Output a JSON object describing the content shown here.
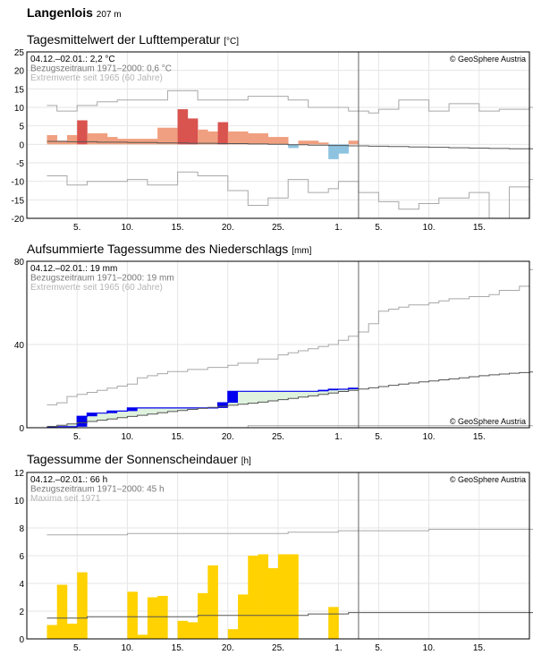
{
  "station": {
    "name": "Langenlois",
    "elevation": "207 m"
  },
  "copyright": "© GeoSphere Austria",
  "x_ticks": [
    "5.",
    "10.",
    "15.",
    "20.",
    "25.",
    "1.",
    "5.",
    "10.",
    "15."
  ],
  "colors": {
    "warm": "#f0a080",
    "warm_extreme": "#d9534f",
    "cold": "#8ec3e0",
    "precip": "#0000ee",
    "precip_fill": "#dff2dd",
    "sun": "#ffd200",
    "climate": "#555555",
    "extreme": "#a8a8a8",
    "grid": "#e6e6e6"
  },
  "chart_data": [
    {
      "type": "bar",
      "title": "Tagesmittelwert der Lufttemperatur",
      "unit": "[°C]",
      "info": [
        "04.12.–02.01.: 2,2 °C",
        "Bezugszeitraum 1971–2000: 0,6 °C",
        "Extremwerte seit 1965 (60 Jahre)"
      ],
      "ylim": [
        -20,
        25
      ],
      "y_ticks": [
        25,
        20,
        15,
        10,
        5,
        0,
        -5,
        -10,
        -15,
        -20
      ],
      "days": 50,
      "values": [
        2.5,
        1.0,
        2.5,
        6.5,
        3.0,
        3.0,
        2.0,
        1.5,
        1.5,
        1.5,
        1.5,
        4.5,
        4.5,
        9.5,
        7.0,
        4.0,
        3.5,
        6.0,
        3.5,
        3.5,
        3.0,
        3.0,
        2.0,
        2.0,
        -1.0,
        1.0,
        1.0,
        0.5,
        -4.0,
        -2.5,
        1.0
      ],
      "extreme_flags": [
        false,
        false,
        false,
        true,
        false,
        false,
        false,
        false,
        false,
        false,
        false,
        false,
        false,
        true,
        true,
        false,
        false,
        true,
        false,
        false,
        false,
        false,
        false,
        false,
        false,
        false,
        false,
        false,
        false,
        false,
        false
      ],
      "climate_mean": [
        0.8,
        0.8,
        0.7,
        0.7,
        0.7,
        0.6,
        0.6,
        0.6,
        0.5,
        0.5,
        0.5,
        0.4,
        0.4,
        0.4,
        0.3,
        0.3,
        0.3,
        0.2,
        0.2,
        0.2,
        0.1,
        0.1,
        0.0,
        0.0,
        -0.1,
        -0.1,
        -0.2,
        -0.2,
        -0.3,
        -0.3,
        -0.4,
        -0.4,
        -0.5,
        -0.5,
        -0.6,
        -0.6,
        -0.7,
        -0.7,
        -0.8,
        -0.8,
        -0.9,
        -0.9,
        -1.0,
        -1.0,
        -1.1,
        -1.1,
        -1.2,
        -1.2,
        -1.2,
        -1.3
      ],
      "max_extreme": [
        10.5,
        9.0,
        9.0,
        10.5,
        10.5,
        11.5,
        11.5,
        12.0,
        12.0,
        12.0,
        12.0,
        12.0,
        14.5,
        14.5,
        14.5,
        12.0,
        12.0,
        12.0,
        12.0,
        12.0,
        13.0,
        13.0,
        13.0,
        13.0,
        12.0,
        12.0,
        10.0,
        10.0,
        10.0,
        10.0,
        9.0,
        9.0,
        8.5,
        9.5,
        9.5,
        12.0,
        12.0,
        12.0,
        9.0,
        9.0,
        11.0,
        11.0,
        11.0,
        9.0,
        9.0,
        9.5,
        9.5,
        9.5,
        10.0,
        10.0
      ],
      "min_extreme": [
        -8.5,
        -8.5,
        -11.0,
        -11.0,
        -10.0,
        -10.0,
        -10.0,
        -10.0,
        -9.5,
        -9.5,
        -11.0,
        -11.0,
        -11.0,
        -7.5,
        -7.5,
        -8.5,
        -8.5,
        -8.5,
        -12.5,
        -12.5,
        -16.5,
        -16.5,
        -14.5,
        -14.5,
        -9.5,
        -9.5,
        -13.0,
        -13.0,
        -12.0,
        -10.0,
        -10.0,
        -13.0,
        -13.0,
        -15.5,
        -15.5,
        -17.5,
        -17.5,
        -16.0,
        -16.0,
        -14.5,
        -14.5,
        -14.5,
        -13.0,
        -13.0,
        -20.0,
        -20.0,
        -11.5,
        -11.5,
        -9.5,
        -9.5
      ]
    },
    {
      "type": "area",
      "title": "Aufsummierte Tagessumme des Niederschlags",
      "unit": "[mm]",
      "info": [
        "04.12.–02.01.: 19 mm",
        "Bezugszeitraum 1971–2000: 19 mm",
        "Extremwerte seit 1965 (60 Jahre)"
      ],
      "ylim": [
        0,
        80
      ],
      "y_ticks": [
        80,
        40,
        0
      ],
      "days": 50,
      "values": [
        0.5,
        0.5,
        0.5,
        5.5,
        7.0,
        7.0,
        8.0,
        8.0,
        9.5,
        9.5,
        9.5,
        9.5,
        9.5,
        9.5,
        9.5,
        9.5,
        9.5,
        12.0,
        17.5,
        17.5,
        17.5,
        17.5,
        17.5,
        17.5,
        17.5,
        17.5,
        17.5,
        18.0,
        18.5,
        18.5,
        19.0
      ],
      "climate_mean": [
        0.6,
        1.2,
        1.8,
        2.4,
        3.0,
        3.6,
        4.2,
        4.8,
        5.4,
        6.0,
        6.6,
        7.2,
        7.8,
        8.3,
        8.8,
        9.3,
        9.8,
        10.3,
        10.8,
        11.3,
        11.8,
        12.3,
        12.9,
        13.5,
        14.1,
        14.7,
        15.3,
        16.0,
        16.7,
        17.4,
        18.0,
        18.6,
        19.2,
        19.8,
        20.4,
        21.0,
        21.5,
        22.0,
        22.5,
        23.0,
        23.5,
        24.0,
        24.5,
        25.0,
        25.4,
        25.8,
        26.2,
        26.5,
        26.8,
        27.0
      ],
      "max_extreme": [
        11.0,
        12.0,
        15.0,
        16.0,
        17.0,
        18.0,
        19.0,
        20.0,
        21.0,
        24.0,
        25.0,
        26.0,
        27.0,
        27.0,
        28.0,
        28.0,
        29.0,
        29.0,
        30.0,
        31.0,
        31.0,
        33.0,
        33.0,
        35.0,
        36.0,
        37.0,
        38.0,
        39.0,
        40.0,
        42.0,
        44.0,
        46.0,
        50.0,
        56.0,
        57.0,
        58.0,
        59.0,
        59.0,
        60.0,
        61.0,
        62.0,
        62.0,
        63.0,
        63.0,
        64.0,
        66.0,
        66.0,
        68.0,
        76.0,
        78.0
      ],
      "min_extreme": [
        0,
        0,
        0,
        0,
        0,
        0,
        0,
        0,
        0,
        0,
        0,
        0,
        0,
        0,
        0,
        0,
        0,
        0,
        0,
        0,
        1,
        1,
        1,
        1,
        1,
        1,
        1,
        1,
        1,
        1,
        1,
        1,
        1,
        1,
        1,
        1,
        1,
        1,
        1,
        1,
        1,
        1,
        1,
        1,
        1,
        1,
        1,
        1,
        1,
        1
      ]
    },
    {
      "type": "bar",
      "title": "Tagessumme der Sonnenscheindauer",
      "unit": "[h]",
      "info": [
        "04.12.–02.01.: 66 h",
        "Bezugszeitraum 1971–2000: 45 h",
        "Maxima seit 1971"
      ],
      "ylim": [
        0,
        12
      ],
      "y_ticks": [
        12,
        10,
        8,
        6,
        4,
        2,
        0
      ],
      "days": 50,
      "values": [
        1.0,
        3.9,
        1.1,
        4.8,
        0.0,
        0.0,
        0.0,
        0.0,
        3.4,
        0.3,
        3.0,
        3.1,
        0.0,
        1.3,
        1.2,
        3.3,
        5.3,
        0.0,
        0.7,
        3.2,
        6.0,
        6.1,
        5.1,
        6.1,
        6.1,
        0.0,
        0.0,
        0.0,
        2.3,
        0.0,
        0.0
      ],
      "climate_mean": [
        1.5,
        1.5,
        1.5,
        1.5,
        1.6,
        1.6,
        1.6,
        1.6,
        1.6,
        1.6,
        1.6,
        1.6,
        1.6,
        1.6,
        1.6,
        1.7,
        1.7,
        1.7,
        1.7,
        1.7,
        1.7,
        1.7,
        1.7,
        1.7,
        1.7,
        1.7,
        1.8,
        1.8,
        1.8,
        1.8,
        1.9,
        1.9,
        1.9,
        1.9,
        1.9,
        1.9,
        1.9,
        1.9,
        1.9,
        1.9,
        1.9,
        1.9,
        1.9,
        1.9,
        1.9,
        1.9,
        1.9,
        1.9,
        1.9,
        1.9
      ],
      "max_extreme": [
        7.5,
        7.5,
        7.5,
        7.5,
        7.5,
        7.5,
        7.5,
        7.5,
        7.6,
        7.6,
        7.6,
        7.6,
        7.6,
        7.6,
        7.6,
        7.6,
        7.6,
        7.6,
        7.6,
        7.6,
        7.6,
        7.6,
        7.6,
        7.6,
        7.7,
        7.7,
        7.7,
        7.7,
        7.7,
        7.8,
        7.8,
        7.8,
        7.8,
        7.8,
        7.8,
        7.8,
        7.8,
        7.8,
        7.9,
        7.9,
        7.9,
        7.9,
        7.9,
        7.9,
        7.9,
        7.9,
        7.9,
        7.9,
        7.9,
        7.9
      ]
    }
  ]
}
